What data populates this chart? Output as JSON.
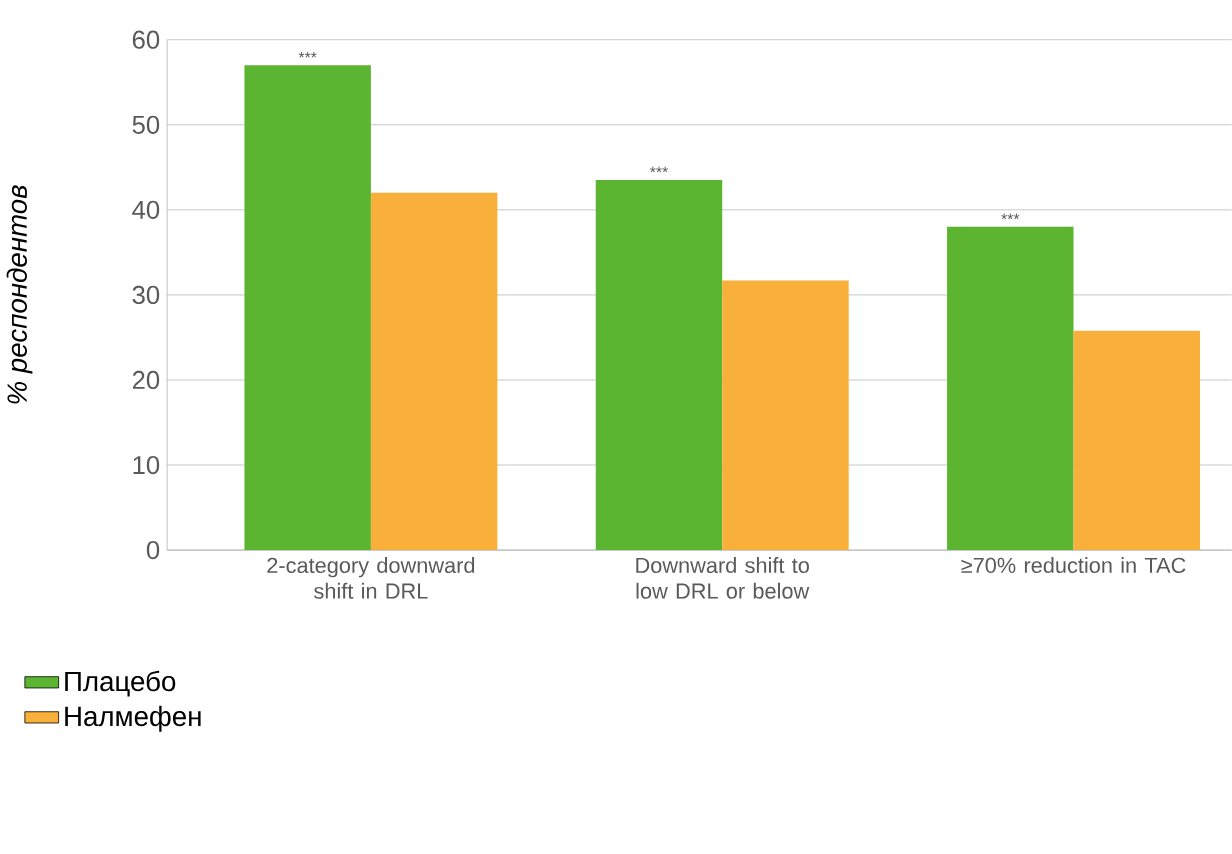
{
  "chart_data": {
    "type": "bar",
    "ylabel": "% респондентов",
    "categories": [
      "2-category downward shift in DRL",
      "Downward shift to low DRL or below",
      "≥70% reduction in TAC"
    ],
    "series": [
      {
        "name": "Плацебо",
        "color": "#5cb531",
        "values": [
          57,
          43.5,
          38
        ]
      },
      {
        "name": "Налмефен",
        "color": "#f9b03a",
        "values": [
          42,
          31.7,
          25.8
        ]
      }
    ],
    "ylim": [
      0,
      60
    ],
    "yticks": [
      0,
      10,
      20,
      30,
      40,
      50,
      60
    ],
    "grid": "y",
    "legend": "bottom left",
    "annotations": [
      "***",
      "***",
      "***"
    ]
  }
}
